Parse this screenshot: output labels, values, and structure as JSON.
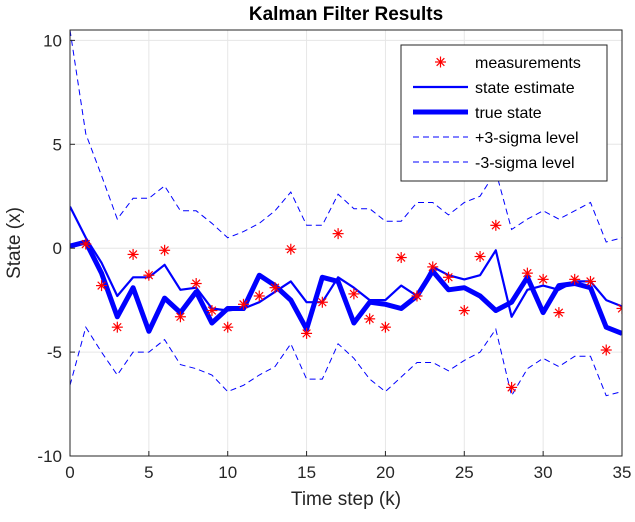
{
  "chart_data": {
    "type": "line",
    "title": "Kalman Filter Results",
    "xlabel": "Time step (k)",
    "ylabel": "State (x)",
    "xlim": [
      0,
      35
    ],
    "ylim": [
      -10,
      10.5
    ],
    "x_ticks": [
      0,
      5,
      10,
      15,
      20,
      25,
      30,
      35
    ],
    "y_ticks": [
      -10,
      -5,
      0,
      5,
      10
    ],
    "x_tick_labels": [
      "0",
      "5",
      "10",
      "15",
      "20",
      "25",
      "30",
      "35"
    ],
    "y_tick_labels": [
      "-10",
      "-5",
      "0",
      "5",
      "10"
    ],
    "grid": true,
    "legend_position": "top-right",
    "colors": {
      "measurements": "#ff0000",
      "lines": "#0000ff",
      "axis": "#262626",
      "grid": "#e6e6e6"
    },
    "legend": [
      {
        "key": "measurements",
        "label": "measurements"
      },
      {
        "key": "estimate",
        "label": "state estimate"
      },
      {
        "key": "true_state",
        "label": "true state"
      },
      {
        "key": "upper",
        "label": "+3-sigma level"
      },
      {
        "key": "lower",
        "label": "-3-sigma level"
      }
    ],
    "series": [
      {
        "key": "measurements",
        "name": "measurements",
        "style": "marker-asterisk",
        "x": [
          1,
          2,
          3,
          4,
          5,
          6,
          7,
          8,
          9,
          10,
          11,
          12,
          13,
          14,
          15,
          16,
          17,
          18,
          19,
          20,
          21,
          22,
          23,
          24,
          25,
          26,
          27,
          28,
          29,
          30,
          31,
          32,
          33,
          34,
          35
        ],
        "y": [
          0.2,
          -1.8,
          -3.8,
          -0.3,
          -1.3,
          -0.1,
          -3.3,
          -1.7,
          -3.0,
          -3.8,
          -2.7,
          -2.3,
          -1.9,
          -0.05,
          -4.1,
          -2.6,
          0.7,
          -2.2,
          -3.4,
          -3.8,
          -0.45,
          -2.3,
          -0.9,
          -1.4,
          -3.0,
          -0.4,
          1.1,
          -6.7,
          -1.2,
          -1.5,
          -3.1,
          -1.5,
          -1.6,
          -4.9,
          -2.9
        ]
      },
      {
        "key": "estimate",
        "name": "state estimate",
        "style": "line-thin",
        "x": [
          0,
          1,
          2,
          3,
          4,
          5,
          6,
          7,
          8,
          9,
          10,
          11,
          12,
          13,
          14,
          15,
          16,
          17,
          18,
          19,
          20,
          21,
          22,
          23,
          24,
          25,
          26,
          27,
          28,
          29,
          30,
          31,
          32,
          33,
          34,
          35
        ],
        "y": [
          2.0,
          0.5,
          -0.7,
          -2.3,
          -1.4,
          -1.4,
          -0.8,
          -2.0,
          -1.9,
          -2.9,
          -3.0,
          -2.9,
          -2.6,
          -2.1,
          -1.6,
          -2.6,
          -2.6,
          -1.4,
          -1.9,
          -2.5,
          -2.5,
          -1.8,
          -2.3,
          -0.9,
          -1.3,
          -1.5,
          -1.3,
          -0.1,
          -3.3,
          -2.0,
          -1.8,
          -2.0,
          -1.6,
          -1.6,
          -2.5,
          -2.8
        ]
      },
      {
        "key": "true_state",
        "name": "true state",
        "style": "line-thick",
        "x": [
          0,
          1,
          2,
          3,
          4,
          5,
          6,
          7,
          8,
          9,
          10,
          11,
          12,
          13,
          14,
          15,
          16,
          17,
          18,
          19,
          20,
          21,
          22,
          23,
          24,
          25,
          26,
          27,
          28,
          29,
          30,
          31,
          32,
          33,
          34,
          35
        ],
        "y": [
          0.1,
          0.3,
          -1.2,
          -3.3,
          -1.9,
          -4.0,
          -2.4,
          -3.1,
          -2.1,
          -3.6,
          -2.9,
          -2.9,
          -1.3,
          -1.8,
          -2.5,
          -3.9,
          -1.4,
          -1.6,
          -3.6,
          -2.6,
          -2.7,
          -2.9,
          -2.3,
          -1.1,
          -2.0,
          -1.9,
          -2.3,
          -3.0,
          -2.6,
          -1.4,
          -3.1,
          -1.8,
          -1.7,
          -1.9,
          -3.8,
          -4.1
        ]
      },
      {
        "key": "upper",
        "name": "+3-sigma level",
        "style": "line-dashed",
        "x": [
          0,
          1,
          2,
          3,
          4,
          5,
          6,
          7,
          8,
          9,
          10,
          11,
          12,
          13,
          14,
          15,
          16,
          17,
          18,
          19,
          20,
          21,
          22,
          23,
          24,
          25,
          26,
          27,
          28,
          29,
          30,
          31,
          32,
          33,
          34,
          35
        ],
        "y": [
          10.5,
          5.5,
          3.5,
          1.4,
          2.4,
          2.4,
          3.0,
          1.8,
          1.8,
          1.2,
          0.5,
          0.8,
          1.2,
          1.8,
          2.7,
          1.1,
          1.1,
          2.6,
          1.9,
          1.9,
          1.3,
          1.3,
          2.2,
          2.2,
          1.6,
          2.2,
          2.5,
          3.7,
          0.9,
          1.4,
          1.8,
          1.4,
          1.8,
          2.2,
          0.3,
          0.5
        ]
      },
      {
        "key": "lower",
        "name": "-3-sigma level",
        "style": "line-dashed",
        "x": [
          0,
          1,
          2,
          3,
          4,
          5,
          6,
          7,
          8,
          9,
          10,
          11,
          12,
          13,
          14,
          15,
          16,
          17,
          18,
          19,
          20,
          21,
          22,
          23,
          24,
          25,
          26,
          27,
          28,
          29,
          30,
          31,
          32,
          33,
          34,
          35
        ],
        "y": [
          -6.6,
          -3.8,
          -5.0,
          -6.1,
          -5.0,
          -5.0,
          -4.4,
          -5.6,
          -5.8,
          -6.1,
          -6.9,
          -6.6,
          -6.1,
          -5.7,
          -4.6,
          -6.3,
          -6.3,
          -4.6,
          -5.3,
          -6.3,
          -6.9,
          -6.2,
          -5.5,
          -5.5,
          -5.9,
          -5.4,
          -5.0,
          -3.9,
          -7.1,
          -5.8,
          -5.3,
          -5.7,
          -5.2,
          -5.2,
          -7.1,
          -6.9
        ]
      }
    ]
  }
}
